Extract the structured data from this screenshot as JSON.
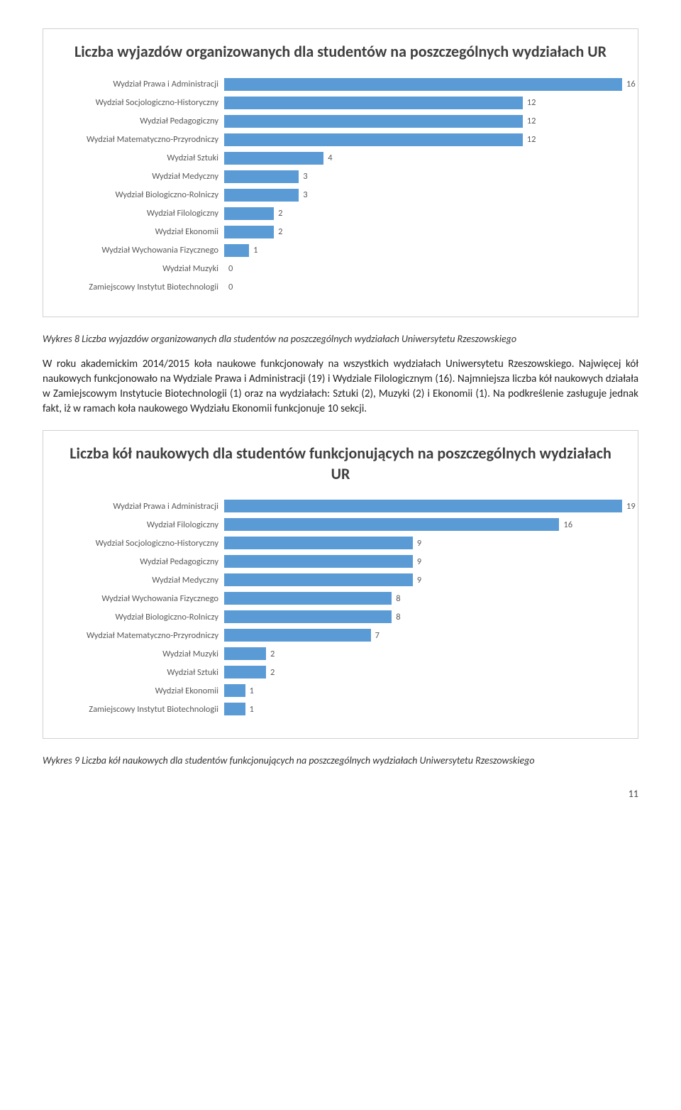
{
  "chart1": {
    "title": "Liczba wyjazdów organizowanych dla studentów na poszczególnych wydziałach UR",
    "label_width": 225,
    "bar_color": "#5b9bd5",
    "max_value": 16,
    "rows": [
      {
        "label": "Wydział Prawa i Administracji",
        "value": 16
      },
      {
        "label": "Wydział Socjologiczno-Historyczny",
        "value": 12
      },
      {
        "label": "Wydział Pedagogiczny",
        "value": 12
      },
      {
        "label": "Wydział Matematyczno-Przyrodniczy",
        "value": 12
      },
      {
        "label": "Wydział Sztuki",
        "value": 4
      },
      {
        "label": "Wydział Medyczny",
        "value": 3
      },
      {
        "label": "Wydział Biologiczno-Rolniczy",
        "value": 3
      },
      {
        "label": "Wydział Filologiczny",
        "value": 2
      },
      {
        "label": "Wydział Ekonomii",
        "value": 2
      },
      {
        "label": "Wydział Wychowania Fizycznego",
        "value": 1
      },
      {
        "label": "Wydział Muzyki",
        "value": 0
      },
      {
        "label": "Zamiejscowy Instytut Biotechnologii",
        "value": 0
      }
    ]
  },
  "caption1": "Wykres 8 Liczba wyjazdów organizowanych dla studentów na poszczególnych wydziałach Uniwersytetu Rzeszowskiego",
  "paragraph": "W roku akademickim 2014/2015 koła naukowe funkcjonowały na wszystkich wydziałach Uniwersytetu Rzeszowskiego. Najwięcej kół naukowych funkcjonowało na Wydziale Prawa i Administracji (19) i Wydziale Filologicznym (16). Najmniejsza liczba kół naukowych działała w Zamiejscowym Instytucie Biotechnologii (1) oraz na wydziałach: Sztuki (2), Muzyki (2) i Ekonomii (1). Na podkreślenie zasługuje jednak fakt, iż w ramach koła naukowego Wydziału Ekonomii funkcjonuje 10 sekcji.",
  "chart2": {
    "title": "Liczba kół naukowych dla studentów funkcjonujących na poszczególnych wydziałach UR",
    "label_width": 225,
    "bar_color": "#5b9bd5",
    "max_value": 19,
    "rows": [
      {
        "label": "Wydział Prawa i Administracji",
        "value": 19
      },
      {
        "label": "Wydział Filologiczny",
        "value": 16
      },
      {
        "label": "Wydział Socjologiczno-Historyczny",
        "value": 9
      },
      {
        "label": "Wydział Pedagogiczny",
        "value": 9
      },
      {
        "label": "Wydział Medyczny",
        "value": 9
      },
      {
        "label": "Wydział Wychowania Fizycznego",
        "value": 8
      },
      {
        "label": "Wydział Biologiczno-Rolniczy",
        "value": 8
      },
      {
        "label": "Wydział Matematyczno-Przyrodniczy",
        "value": 7
      },
      {
        "label": "Wydział Muzyki",
        "value": 2
      },
      {
        "label": "Wydział Sztuki",
        "value": 2
      },
      {
        "label": "Wydział Ekonomii",
        "value": 1
      },
      {
        "label": "Zamiejscowy Instytut Biotechnologii",
        "value": 1
      }
    ]
  },
  "caption2": "Wykres 9 Liczba kół naukowych dla studentów funkcjonujących na poszczególnych wydziałach Uniwersytetu Rzeszowskiego",
  "page_number": "11"
}
